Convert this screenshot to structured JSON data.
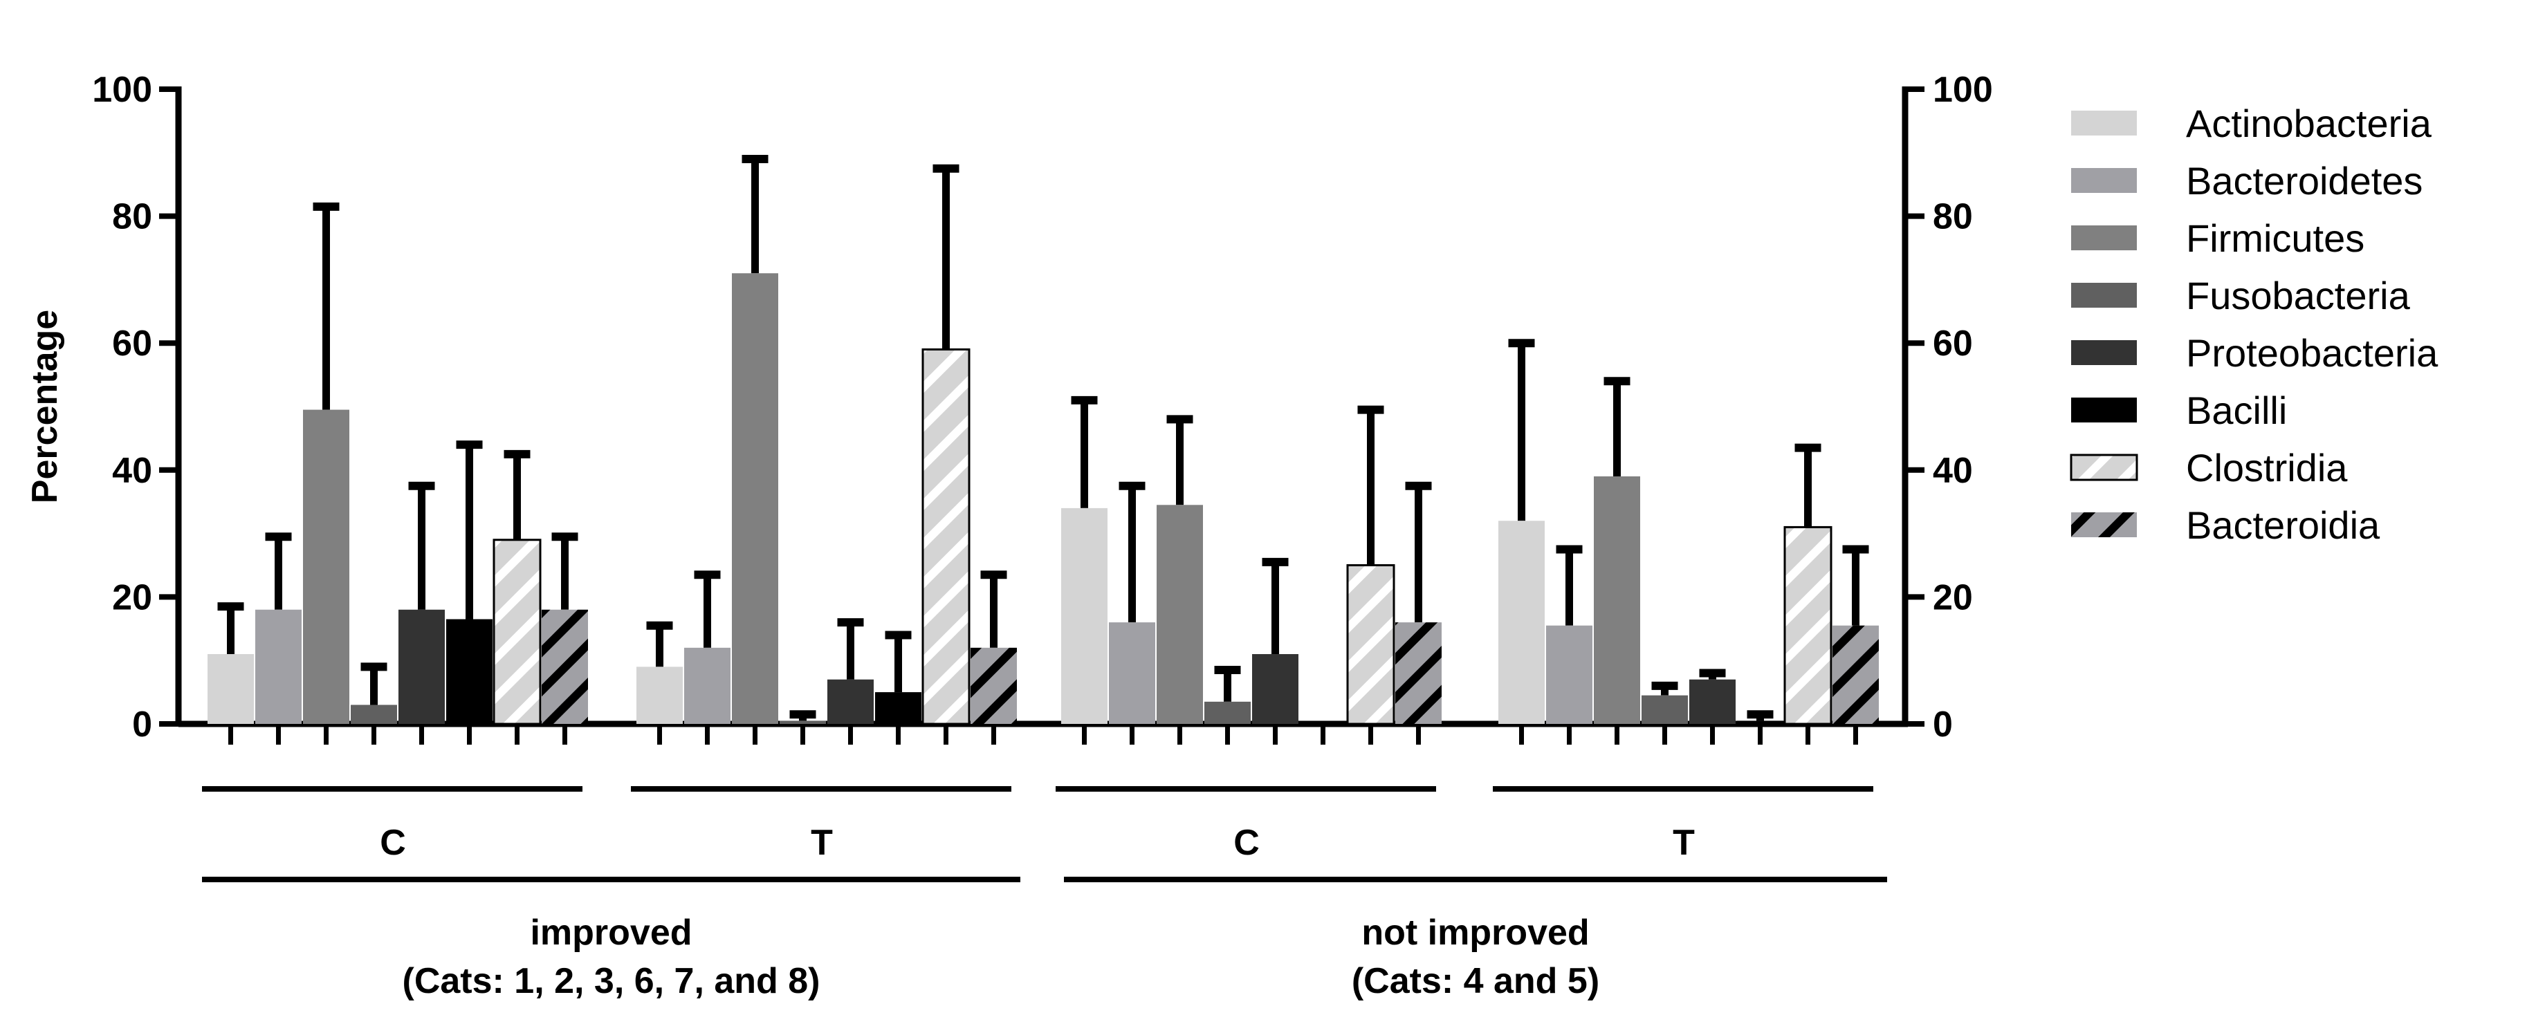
{
  "chart_data": {
    "type": "bar",
    "ylabel": "Percentage",
    "ylim": [
      0,
      100
    ],
    "yticks": [
      0,
      20,
      40,
      60,
      80,
      100
    ],
    "right_axis": true,
    "grid": false,
    "legend_position": "right",
    "categories": [
      {
        "sub": "C",
        "group": "improved"
      },
      {
        "sub": "T",
        "group": "improved"
      },
      {
        "sub": "C",
        "group": "not improved"
      },
      {
        "sub": "T",
        "group": "not improved"
      }
    ],
    "groups": [
      {
        "label": "improved",
        "sublabel": "(Cats: 1, 2, 3, 6, 7, and 8)"
      },
      {
        "label": "not improved",
        "sublabel": "(Cats: 4 and 5)"
      }
    ],
    "series": [
      {
        "name": "Actinobacteria",
        "color": "#d4d4d4",
        "pattern": "none",
        "values": [
          11,
          9,
          34,
          32
        ],
        "error_top": [
          18.5,
          15.5,
          51,
          60
        ]
      },
      {
        "name": "Bacteroidetes",
        "color": "#a0a0a5",
        "pattern": "none",
        "values": [
          18,
          12,
          16,
          15.5
        ],
        "error_top": [
          29.5,
          23.5,
          37.5,
          27.5
        ]
      },
      {
        "name": "Firmicutes",
        "color": "#808080",
        "pattern": "none",
        "values": [
          49.5,
          71,
          34.5,
          39
        ],
        "error_top": [
          81.5,
          89,
          48,
          54
        ]
      },
      {
        "name": "Fusobacteria",
        "color": "#606060",
        "pattern": "none",
        "values": [
          3,
          0.5,
          3.5,
          4.5
        ],
        "error_top": [
          9,
          1.5,
          8.5,
          6
        ]
      },
      {
        "name": "Proteobacteria",
        "color": "#333333",
        "pattern": "none",
        "values": [
          18,
          7,
          11,
          7
        ],
        "error_top": [
          37.5,
          16,
          25.5,
          8
        ]
      },
      {
        "name": "Bacilli",
        "color": "#000000",
        "pattern": "none",
        "values": [
          16.5,
          5,
          0,
          0.5
        ],
        "error_top": [
          44,
          14,
          0,
          1.5
        ]
      },
      {
        "name": "Clostridia",
        "color": "#d4d4d4",
        "pattern": "white-stripes",
        "values": [
          29,
          59,
          25,
          31
        ],
        "error_top": [
          42.5,
          87.5,
          49.5,
          43.5
        ]
      },
      {
        "name": "Bacteroidia",
        "color": "#a0a0a5",
        "pattern": "black-stripes",
        "values": [
          18,
          12,
          16,
          15.5
        ],
        "error_top": [
          29.5,
          23.5,
          37.5,
          27.5
        ]
      }
    ]
  }
}
